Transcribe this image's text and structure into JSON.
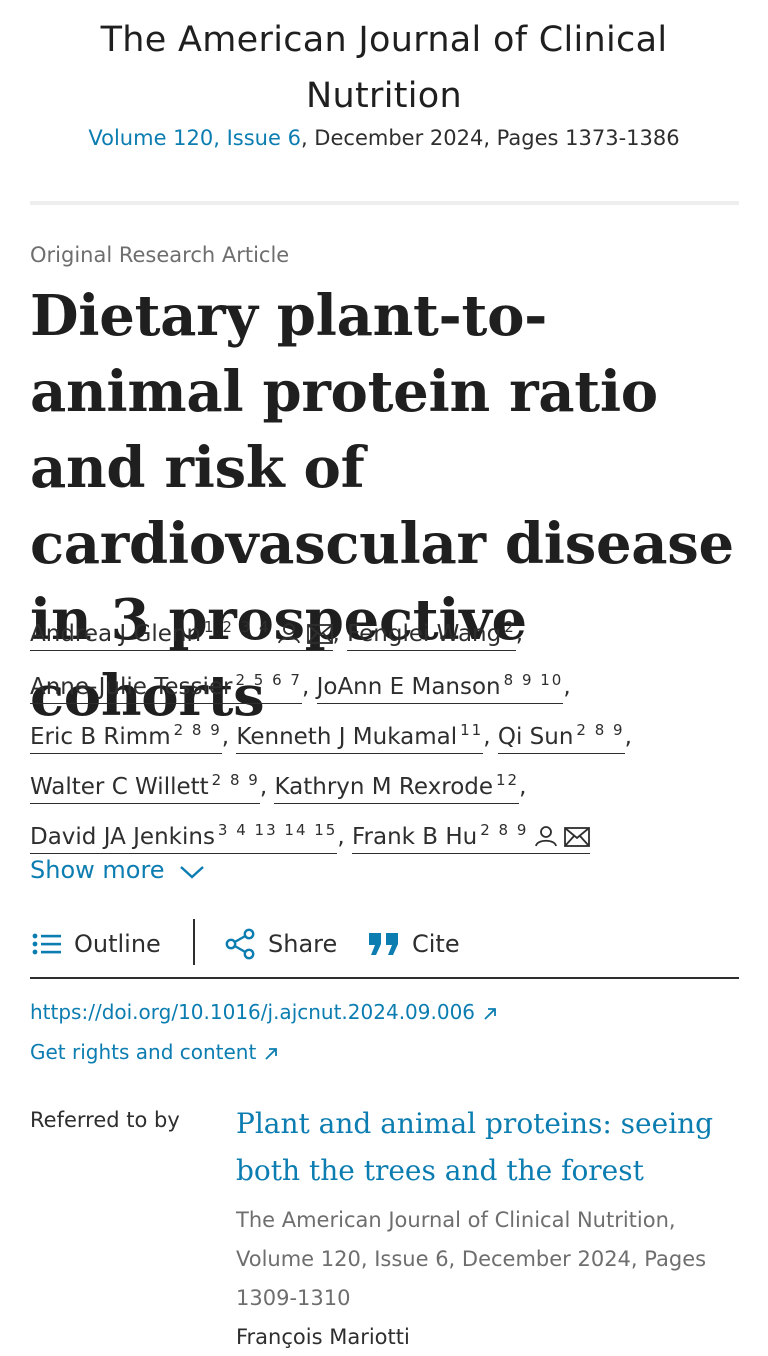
{
  "journal": {
    "title": "The American Journal of Clinical Nutrition",
    "volume_issue": "Volume 120, Issue 6",
    "issue_rest": ", December 2024, Pages 1373-1386"
  },
  "article": {
    "type": "Original Research Article",
    "title": "Dietary plant-to-animal protein ratio and risk of cardiovascular disease in 3 prospective cohorts"
  },
  "authors": [
    {
      "name": "Andrea J Glenn",
      "sup": "1 2 3 4"
    },
    {
      "name": "Fenglei Wang",
      "sup": "2"
    },
    {
      "name": "Anne-Julie Tessier",
      "sup": "2 5 6 7"
    },
    {
      "name": "JoAnn E Manson",
      "sup": "8 9 10"
    },
    {
      "name": "Eric B Rimm",
      "sup": "2 8 9"
    },
    {
      "name": "Kenneth J Mukamal",
      "sup": "11"
    },
    {
      "name": "Qi Sun",
      "sup": "2 8 9"
    },
    {
      "name": "Walter C Willett",
      "sup": "2 8 9"
    },
    {
      "name": "Kathryn M Rexrode",
      "sup": "12"
    },
    {
      "name": "David JA Jenkins",
      "sup": "3 4 13 14 15"
    },
    {
      "name": "Frank B Hu",
      "sup": "2 8 9"
    }
  ],
  "show_more": "Show more",
  "toolbar": {
    "outline": "Outline",
    "share": "Share",
    "cite": "Cite"
  },
  "links": {
    "doi": "https://doi.org/10.1016/j.ajcnut.2024.09.006",
    "rights": "Get rights and content"
  },
  "referred": {
    "label": "Referred to by",
    "title": "Plant and animal proteins: seeing both the trees and the forest",
    "source": "The American Journal of Clinical Nutrition, Volume 120, Issue 6, December 2024, Pages 1309-1310",
    "author": "François Mariotti"
  },
  "colors": {
    "link": "#0c7db1",
    "text": "#1f1f1f",
    "muted": "#6e6e6e"
  },
  "icons": [
    "person-icon",
    "mail-icon",
    "chevron-down-icon",
    "list-icon",
    "share-icon",
    "quote-icon",
    "external-link-icon"
  ]
}
